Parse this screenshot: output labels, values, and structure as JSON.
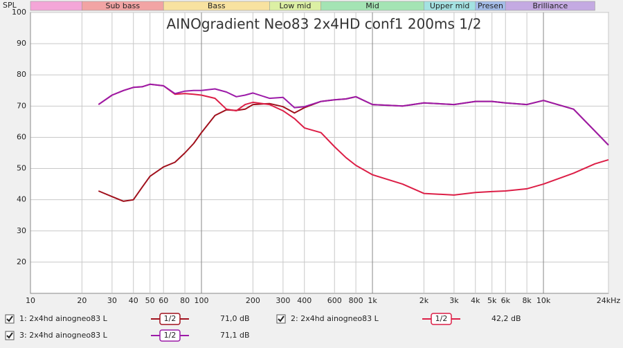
{
  "chart_data": {
    "type": "line",
    "title": "AINOgradient Neo83 2x4HD conf1 200ms 1/2",
    "y_label": "SPL",
    "xscale": "log",
    "grid": true,
    "xlim": [
      10,
      24000
    ],
    "ylim": [
      10,
      100
    ],
    "yticks": [
      20,
      30,
      40,
      50,
      60,
      70,
      80,
      90,
      100
    ],
    "xticks": [
      10,
      20,
      30,
      40,
      50,
      60,
      80,
      100,
      200,
      300,
      400,
      600,
      800,
      {
        "value": 1000,
        "label": "1k"
      },
      {
        "value": 2000,
        "label": "2k"
      },
      {
        "value": 3000,
        "label": "3k"
      },
      {
        "value": 4000,
        "label": "4k"
      },
      {
        "value": 5000,
        "label": "5k"
      },
      {
        "value": 6000,
        "label": "6k"
      },
      {
        "value": 8000,
        "label": "8k"
      },
      {
        "value": 10000,
        "label": "10k"
      },
      {
        "value": 24000,
        "label": "24kHz"
      }
    ],
    "bands": [
      {
        "name": null,
        "from": 10,
        "to": 20,
        "color": "#f4a6d8"
      },
      {
        "name": "Sub bass",
        "from": 20,
        "to": 60,
        "color": "#f2a4a4"
      },
      {
        "name": "Bass",
        "from": 60,
        "to": 250,
        "color": "#f8e2a0"
      },
      {
        "name": "Low mid",
        "from": 250,
        "to": 500,
        "color": "#dcf0a4"
      },
      {
        "name": "Mid",
        "from": 500,
        "to": 2000,
        "color": "#a4e4b4"
      },
      {
        "name": "Upper mid",
        "from": 2000,
        "to": 4000,
        "color": "#a4e2e2"
      },
      {
        "name": "Presen",
        "from": 4000,
        "to": 6000,
        "color": "#a4bce8"
      },
      {
        "name": "Brilliance",
        "from": 6000,
        "to": 20000,
        "color": "#c4aae2"
      }
    ],
    "x": [
      25,
      30,
      35,
      40,
      45,
      50,
      60,
      70,
      80,
      90,
      100,
      120,
      140,
      160,
      180,
      200,
      250,
      300,
      350,
      400,
      500,
      600,
      700,
      800,
      1000,
      1500,
      2000,
      3000,
      4000,
      5000,
      6000,
      8000,
      10000,
      15000,
      20000,
      24000
    ],
    "series": [
      {
        "name": "1: 2x4hd ainogneo83 L",
        "color": "#a0101c",
        "smoothing": "1/2",
        "level": "71,0 dB",
        "values": [
          42.8,
          41,
          39.5,
          40,
          44,
          47.5,
          50.5,
          52,
          55,
          58,
          61.5,
          67,
          68.8,
          68.6,
          69,
          70.5,
          70.8,
          69.8,
          67.8,
          69.5,
          71.5,
          72,
          72.3,
          73,
          70.5,
          70,
          71,
          70.5,
          71.5,
          71.5,
          71,
          70.5,
          71.8,
          69,
          62,
          57.5
        ]
      },
      {
        "name": "2: 2x4hd ainogneo83 L",
        "color": "#dc1e46",
        "smoothing": "1/2",
        "level": "42,2 dB",
        "values": [
          70.5,
          73.5,
          75,
          76,
          76.2,
          77,
          76.5,
          73.8,
          74,
          73.8,
          73.5,
          72.5,
          69,
          68.5,
          70.5,
          71.2,
          70.5,
          68.5,
          66,
          63,
          61.5,
          57,
          53.5,
          51,
          48,
          45,
          42,
          41.5,
          42.3,
          42.6,
          42.8,
          43.5,
          45,
          48.5,
          51.5,
          52.8
        ]
      },
      {
        "name": "3: 2x4hd ainogneo83 L",
        "color": "#9c1aa8",
        "smoothing": "1/2",
        "level": "71,1 dB",
        "values": [
          70.5,
          73.5,
          75,
          76,
          76.2,
          77,
          76.5,
          74,
          74.8,
          75,
          75,
          75.5,
          74.5,
          73,
          73.5,
          74.2,
          72.5,
          72.8,
          69.5,
          69.8,
          71.5,
          72,
          72.3,
          73,
          70.5,
          70,
          71,
          70.5,
          71.5,
          71.5,
          71,
          70.5,
          71.8,
          69,
          62,
          57.5
        ]
      }
    ]
  }
}
